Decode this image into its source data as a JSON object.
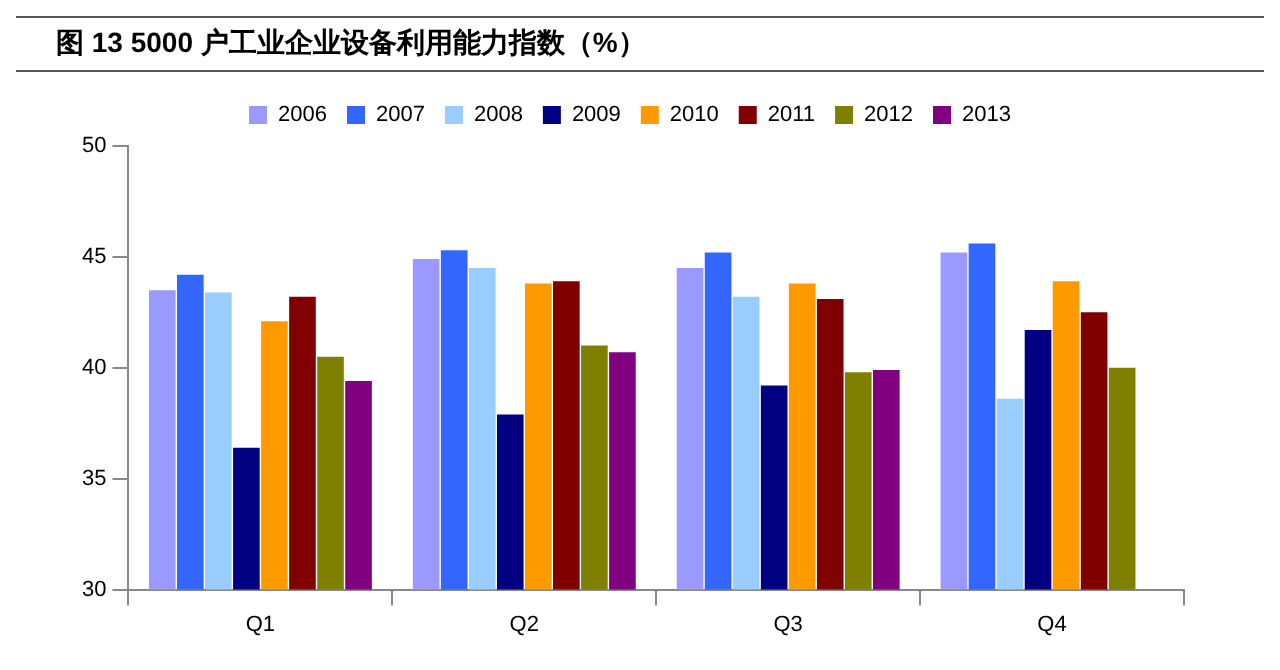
{
  "chart_data": {
    "type": "bar",
    "title": "图 13   5000 户工业企业设备利用能力指数（%）",
    "categories": [
      "Q1",
      "Q2",
      "Q3",
      "Q4"
    ],
    "series": [
      {
        "name": "2006",
        "color": "#9999ff",
        "values": [
          43.5,
          44.9,
          44.5,
          45.2
        ]
      },
      {
        "name": "2007",
        "color": "#3366ff",
        "values": [
          44.2,
          45.3,
          45.2,
          45.6
        ]
      },
      {
        "name": "2008",
        "color": "#99ccff",
        "values": [
          43.4,
          44.5,
          43.2,
          38.6
        ]
      },
      {
        "name": "2009",
        "color": "#000080",
        "values": [
          36.4,
          37.9,
          39.2,
          41.7
        ]
      },
      {
        "name": "2010",
        "color": "#ff9900",
        "values": [
          42.1,
          43.8,
          43.8,
          43.9
        ]
      },
      {
        "name": "2011",
        "color": "#800000",
        "values": [
          43.2,
          43.9,
          43.1,
          42.5
        ]
      },
      {
        "name": "2012",
        "color": "#808000",
        "values": [
          40.5,
          41.0,
          39.8,
          40.0
        ]
      },
      {
        "name": "2013",
        "color": "#800080",
        "values": [
          39.4,
          40.7,
          39.9,
          null
        ]
      }
    ],
    "ylim": [
      30,
      50
    ],
    "yticks": [
      30,
      35,
      40,
      45,
      50
    ],
    "grid": false,
    "legend": "top"
  }
}
